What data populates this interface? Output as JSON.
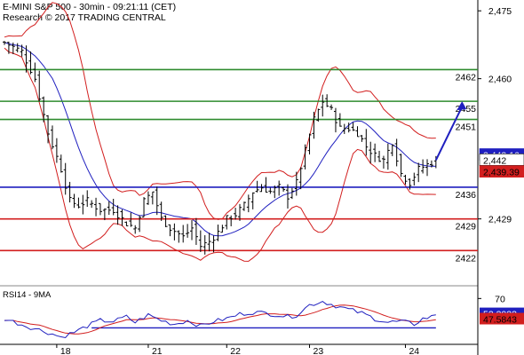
{
  "header": {
    "line1": "E-MINI S&P 500 - 30min - 09:21:11 (CET)",
    "line2": "Research © 2017 TRADING CENTRAL"
  },
  "chart_data": [
    {
      "type": "candlestick",
      "title": "E-MINI S&P 500 - 30min",
      "ylim": [
        2415,
        2477
      ],
      "y_ticks": [
        "2,475",
        "2,460",
        "2,429"
      ],
      "x_ticks": [
        "18",
        "21",
        "22",
        "23",
        "24"
      ],
      "levels": [
        {
          "label": "2462",
          "value": 2462,
          "color": "#2e8b2e"
        },
        {
          "label": "2455",
          "value": 2455,
          "color": "#2e8b2e"
        },
        {
          "label": "2451",
          "value": 2451,
          "color": "#2e8b2e"
        },
        {
          "label": "2436",
          "value": 2436,
          "color": "#1f1fbf"
        },
        {
          "label": "2429",
          "value": 2429,
          "color": "#d21e1e"
        },
        {
          "label": "2422",
          "value": 2422,
          "color": "#d21e1e"
        }
      ],
      "price_tags": [
        {
          "label": "2,443.16",
          "value": 2443.16,
          "bg": "#1f1fbf",
          "fg": "#ffffff"
        },
        {
          "label": "2,442",
          "value": 2442,
          "bg": "#ffffff",
          "fg": "#000000"
        },
        {
          "label": "2,439.39",
          "value": 2439.39,
          "bg": "#d21e1e",
          "fg": "#000000"
        }
      ],
      "series_colors": {
        "candles": "#000000",
        "moving_average": "#1f1fbf",
        "bollinger_bands": "#d21e1e",
        "arrow": "#1f1fbf"
      },
      "close_path": [
        [
          0,
          2468
        ],
        [
          4,
          2466
        ],
        [
          7,
          2460
        ],
        [
          10,
          2448
        ],
        [
          13,
          2440
        ],
        [
          15,
          2433
        ],
        [
          17,
          2432
        ],
        [
          19,
          2433
        ],
        [
          22,
          2431
        ],
        [
          25,
          2431
        ],
        [
          28,
          2428
        ],
        [
          30,
          2427
        ],
        [
          32,
          2433
        ],
        [
          34,
          2435
        ],
        [
          36,
          2429
        ],
        [
          38,
          2427
        ],
        [
          41,
          2425
        ],
        [
          43,
          2427
        ],
        [
          45,
          2423
        ],
        [
          47,
          2424
        ],
        [
          49,
          2426
        ],
        [
          51,
          2429
        ],
        [
          53,
          2430
        ],
        [
          55,
          2432
        ],
        [
          57,
          2435
        ],
        [
          59,
          2436
        ],
        [
          61,
          2435
        ],
        [
          63,
          2436
        ],
        [
          65,
          2434
        ],
        [
          67,
          2437
        ],
        [
          69,
          2444
        ],
        [
          71,
          2451
        ],
        [
          73,
          2455
        ],
        [
          75,
          2453
        ],
        [
          77,
          2449
        ],
        [
          79,
          2449
        ],
        [
          81,
          2448
        ],
        [
          83,
          2445
        ],
        [
          85,
          2443
        ],
        [
          87,
          2442
        ],
        [
          89,
          2446
        ],
        [
          91,
          2439
        ],
        [
          93,
          2437
        ],
        [
          95,
          2440
        ],
        [
          97,
          2441
        ],
        [
          99,
          2442
        ]
      ],
      "arrow": {
        "from": [
          99,
          2442
        ],
        "to": [
          105,
          2455
        ]
      }
    },
    {
      "type": "line",
      "title": "RSI14 - 9MA",
      "ylim": [
        20,
        80
      ],
      "y_ticks": [
        "70"
      ],
      "price_tags": [
        {
          "label": "53.3033",
          "value": 53.3033,
          "bg": "#1f1fbf",
          "fg": "#ffffff"
        },
        {
          "label": "47.5843",
          "value": 47.5843,
          "bg": "#d21e1e",
          "fg": "#000000"
        }
      ],
      "level": 38,
      "rsi_path": [
        [
          0,
          48
        ],
        [
          5,
          40
        ],
        [
          10,
          33
        ],
        [
          13,
          28
        ],
        [
          16,
          33
        ],
        [
          19,
          40
        ],
        [
          22,
          46
        ],
        [
          25,
          45
        ],
        [
          28,
          50
        ],
        [
          30,
          44
        ],
        [
          33,
          52
        ],
        [
          36,
          46
        ],
        [
          39,
          42
        ],
        [
          42,
          46
        ],
        [
          45,
          40
        ],
        [
          48,
          45
        ],
        [
          51,
          48
        ],
        [
          54,
          53
        ],
        [
          57,
          55
        ],
        [
          60,
          54
        ],
        [
          63,
          52
        ],
        [
          65,
          50
        ],
        [
          67,
          52
        ],
        [
          70,
          63
        ],
        [
          73,
          67
        ],
        [
          76,
          62
        ],
        [
          79,
          58
        ],
        [
          82,
          54
        ],
        [
          85,
          48
        ],
        [
          88,
          44
        ],
        [
          91,
          45
        ],
        [
          94,
          42
        ],
        [
          96,
          48
        ],
        [
          98,
          50
        ],
        [
          99,
          53
        ]
      ]
    }
  ]
}
